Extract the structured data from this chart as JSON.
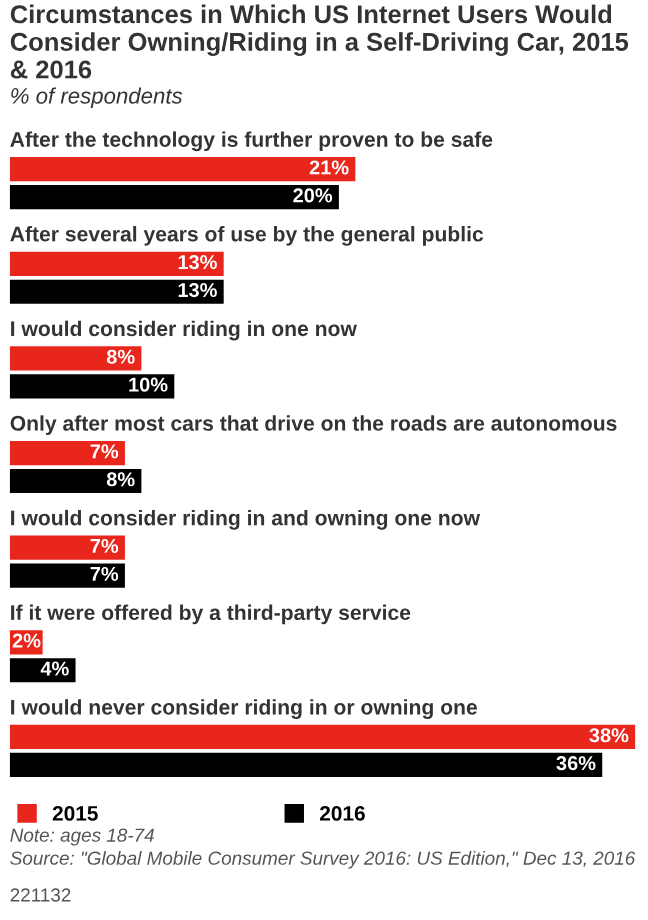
{
  "chart_data": {
    "type": "bar",
    "orientation": "horizontal",
    "title": "Circumstances in Which US Internet Users Would Consider Owning/Riding in a Self-Driving Car, 2015 & 2016",
    "subtitle": "% of respondents",
    "categories": [
      "After the technology is further proven to be safe",
      "After several years of use by the general public",
      "I would consider riding in one now",
      "Only after most cars that drive on the roads are autonomous",
      "I would consider riding in and owning one now",
      "If it were offered by a third-party service",
      "I would never consider riding in or owning one"
    ],
    "series": [
      {
        "name": "2015",
        "color": "#e8261c",
        "values": [
          21,
          13,
          8,
          7,
          7,
          2,
          38
        ],
        "value_labels": [
          "21%",
          "13%",
          "8%",
          "7%",
          "7%",
          "2%",
          "38%"
        ]
      },
      {
        "name": "2016",
        "color": "#000000",
        "values": [
          20,
          13,
          10,
          8,
          7,
          4,
          36
        ],
        "value_labels": [
          "20%",
          "13%",
          "10%",
          "8%",
          "7%",
          "4%",
          "36%"
        ]
      }
    ],
    "legend": "bottom left",
    "annotations": [
      "Note: ages 18-74",
      "Source: \"Global Mobile Consumer Survey 2016: US Edition,\" Dec 13, 2016",
      "221132"
    ]
  }
}
